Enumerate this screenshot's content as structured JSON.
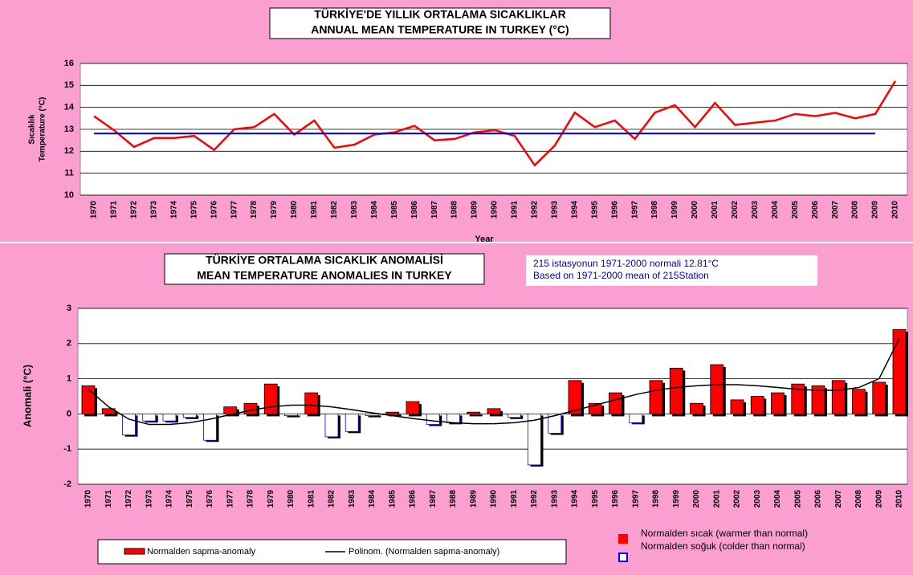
{
  "chart_data": [
    {
      "type": "line",
      "title": [
        "TÜRKİYE'DE YILLIK ORTALAMA SICAKLIKLAR",
        "ANNUAL MEAN TEMPERATURE IN TURKEY (°C)"
      ],
      "ylabel": [
        "Sıcaklık",
        "Temperature (°C)"
      ],
      "xlabel": "Year",
      "x": [
        1970,
        1971,
        1972,
        1973,
        1974,
        1975,
        1976,
        1977,
        1978,
        1979,
        1980,
        1981,
        1982,
        1983,
        1984,
        1985,
        1986,
        1987,
        1988,
        1989,
        1990,
        1991,
        1992,
        1993,
        1994,
        1995,
        1996,
        1997,
        1998,
        1999,
        2000,
        2001,
        2002,
        2003,
        2004,
        2005,
        2006,
        2007,
        2008,
        2009,
        2010
      ],
      "series": [
        {
          "color": "#ff0000",
          "values": [
            13.6,
            12.96,
            12.2,
            12.6,
            12.6,
            12.7,
            12.06,
            13.0,
            13.1,
            13.7,
            12.76,
            13.4,
            12.16,
            12.3,
            12.76,
            12.86,
            13.16,
            12.5,
            12.56,
            12.86,
            12.96,
            12.7,
            11.36,
            12.26,
            13.76,
            13.1,
            13.4,
            12.56,
            13.76,
            14.1,
            13.1,
            14.2,
            13.2,
            13.3,
            13.4,
            13.7,
            13.6,
            13.75,
            13.5,
            13.7,
            15.2
          ]
        },
        {
          "color": "#0000cc",
          "values": [
            12.81,
            12.81,
            12.81,
            12.81,
            12.81,
            12.81,
            12.81,
            12.81,
            12.81,
            12.81,
            12.81,
            12.81,
            12.81,
            12.81,
            12.81,
            12.81,
            12.81,
            12.81,
            12.81,
            12.81,
            12.81,
            12.81,
            12.81,
            12.81,
            12.81,
            12.81,
            12.81,
            12.81,
            12.81,
            12.81,
            12.81,
            12.81,
            12.81,
            12.81,
            12.81,
            12.81,
            12.81,
            12.81,
            12.81,
            12.81,
            null
          ]
        }
      ],
      "ylim": [
        10,
        16
      ],
      "yticks": [
        10,
        11,
        12,
        13,
        14,
        15,
        16
      ],
      "grid": true
    },
    {
      "type": "bar",
      "title": [
        "TÜRKİYE ORTALAMA SICAKLIK ANOMALİSİ",
        "MEAN TEMPERATURE ANOMALIES IN TURKEY"
      ],
      "note": [
        "215 istasyonun 1971-2000 normali 12.81°C",
        "Based on 1971-2000 mean of 215Station"
      ],
      "ylabel": "Anomali (°C)",
      "x": [
        1970,
        1971,
        1972,
        1973,
        1974,
        1975,
        1976,
        1977,
        1978,
        1979,
        1980,
        1981,
        1982,
        1983,
        1984,
        1985,
        1986,
        1987,
        1988,
        1989,
        1990,
        1991,
        1992,
        1993,
        1994,
        1995,
        1996,
        1997,
        1998,
        1999,
        2000,
        2001,
        2002,
        2003,
        2004,
        2005,
        2006,
        2007,
        2008,
        2009,
        2010
      ],
      "series": [
        {
          "name": "Normalden sapma-anomaly",
          "color": "#ff0000",
          "values": [
            0.8,
            0.15,
            -0.6,
            -0.2,
            -0.2,
            -0.1,
            -0.75,
            0.2,
            0.3,
            0.85,
            -0.05,
            0.6,
            -0.65,
            -0.5,
            -0.05,
            0.05,
            0.35,
            -0.3,
            -0.25,
            0.05,
            0.15,
            -0.1,
            -1.45,
            -0.55,
            0.95,
            0.3,
            0.6,
            -0.25,
            0.95,
            1.3,
            0.3,
            1.4,
            0.4,
            0.5,
            0.6,
            0.85,
            0.8,
            0.95,
            0.7,
            0.9,
            2.4
          ]
        },
        {
          "name": "Polinom. (Normalden sapma-anomaly)",
          "color": "#000000",
          "values": [
            0.7,
            0.2,
            -0.15,
            -0.3,
            -0.3,
            -0.25,
            -0.15,
            -0.02,
            0.1,
            0.2,
            0.25,
            0.25,
            0.2,
            0.12,
            0.03,
            -0.05,
            -0.13,
            -0.2,
            -0.25,
            -0.28,
            -0.28,
            -0.25,
            -0.18,
            -0.05,
            0.1,
            0.25,
            0.4,
            0.55,
            0.67,
            0.75,
            0.8,
            0.83,
            0.83,
            0.8,
            0.75,
            0.7,
            0.67,
            0.67,
            0.75,
            1.0,
            2.15
          ]
        }
      ],
      "positive_color": "#ff0000",
      "negative_color": "#0000ff",
      "sign_legend": [
        "Normalden sıcak (warmer than normal)",
        "Normalden soğuk (colder than normal)"
      ],
      "ylim": [
        -2,
        3
      ],
      "yticks": [
        -2,
        -1,
        0,
        1,
        2,
        3
      ],
      "grid": true
    }
  ]
}
